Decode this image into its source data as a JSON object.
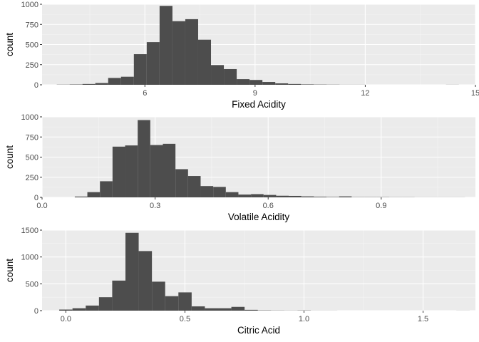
{
  "chart_data": [
    {
      "type": "histogram",
      "xlabel": "Fixed Acidity",
      "ylabel": "count",
      "xlim": [
        3.2,
        15.0
      ],
      "ylim": [
        0,
        1000
      ],
      "xticks": [
        6,
        9,
        12,
        15
      ],
      "yticks": [
        0,
        250,
        500,
        750,
        1000
      ],
      "bin_width": 0.35,
      "bins": [
        {
          "x0": 3.6,
          "count": 2
        },
        {
          "x0": 3.95,
          "count": 4
        },
        {
          "x0": 4.3,
          "count": 10
        },
        {
          "x0": 4.65,
          "count": 22
        },
        {
          "x0": 5.0,
          "count": 85
        },
        {
          "x0": 5.35,
          "count": 100
        },
        {
          "x0": 5.7,
          "count": 380
        },
        {
          "x0": 6.05,
          "count": 530
        },
        {
          "x0": 6.4,
          "count": 980
        },
        {
          "x0": 6.75,
          "count": 790
        },
        {
          "x0": 7.1,
          "count": 815
        },
        {
          "x0": 7.45,
          "count": 560
        },
        {
          "x0": 7.8,
          "count": 245
        },
        {
          "x0": 8.15,
          "count": 195
        },
        {
          "x0": 8.5,
          "count": 70
        },
        {
          "x0": 8.85,
          "count": 60
        },
        {
          "x0": 9.2,
          "count": 35
        },
        {
          "x0": 9.55,
          "count": 18
        },
        {
          "x0": 9.9,
          "count": 10
        },
        {
          "x0": 10.25,
          "count": 5
        },
        {
          "x0": 10.6,
          "count": 3
        },
        {
          "x0": 10.95,
          "count": 2
        },
        {
          "x0": 11.3,
          "count": 1
        },
        {
          "x0": 11.65,
          "count": 1
        },
        {
          "x0": 14.2,
          "count": 1
        }
      ]
    },
    {
      "type": "histogram",
      "xlabel": "Volatile Acidity",
      "ylabel": "count",
      "xlim": [
        0.0,
        1.15
      ],
      "ylim": [
        0,
        1000
      ],
      "xticks": [
        0.0,
        0.3,
        0.6,
        0.9
      ],
      "xtick_labels": [
        "0.0",
        "0.3",
        "0.6",
        "0.9"
      ],
      "yticks": [
        0,
        250,
        500,
        750,
        1000
      ],
      "bin_width": 0.0334,
      "bins": [
        {
          "x0": 0.0868,
          "count": 10
        },
        {
          "x0": 0.1202,
          "count": 65
        },
        {
          "x0": 0.1536,
          "count": 200
        },
        {
          "x0": 0.187,
          "count": 630
        },
        {
          "x0": 0.2204,
          "count": 645
        },
        {
          "x0": 0.2538,
          "count": 960
        },
        {
          "x0": 0.2872,
          "count": 650
        },
        {
          "x0": 0.3206,
          "count": 665
        },
        {
          "x0": 0.354,
          "count": 350
        },
        {
          "x0": 0.3874,
          "count": 265
        },
        {
          "x0": 0.4208,
          "count": 140
        },
        {
          "x0": 0.4542,
          "count": 130
        },
        {
          "x0": 0.4876,
          "count": 65
        },
        {
          "x0": 0.521,
          "count": 35
        },
        {
          "x0": 0.5544,
          "count": 40
        },
        {
          "x0": 0.5878,
          "count": 30
        },
        {
          "x0": 0.6212,
          "count": 20
        },
        {
          "x0": 0.6546,
          "count": 18
        },
        {
          "x0": 0.688,
          "count": 12
        },
        {
          "x0": 0.7214,
          "count": 8
        },
        {
          "x0": 0.7548,
          "count": 5
        },
        {
          "x0": 0.7882,
          "count": 12
        },
        {
          "x0": 0.8216,
          "count": 3
        },
        {
          "x0": 0.855,
          "count": 3
        },
        {
          "x0": 0.8884,
          "count": 3
        },
        {
          "x0": 0.9218,
          "count": 2
        },
        {
          "x0": 0.9552,
          "count": 2
        },
        {
          "x0": 0.9886,
          "count": 1
        },
        {
          "x0": 1.022,
          "count": 1
        },
        {
          "x0": 1.0554,
          "count": 1
        },
        {
          "x0": 1.0888,
          "count": 1
        }
      ]
    },
    {
      "type": "histogram",
      "xlabel": "Citric Acid",
      "ylabel": "count",
      "xlim": [
        -0.1,
        1.72
      ],
      "ylim": [
        0,
        1500
      ],
      "xticks": [
        0.0,
        0.5,
        1.0,
        1.5
      ],
      "xtick_labels": [
        "0.0",
        "0.5",
        "1.0",
        "1.5"
      ],
      "yticks": [
        0,
        500,
        1000,
        1500
      ],
      "bin_width": 0.0556,
      "bins": [
        {
          "x0": -0.0278,
          "count": 20
        },
        {
          "x0": 0.0278,
          "count": 45
        },
        {
          "x0": 0.0834,
          "count": 95
        },
        {
          "x0": 0.139,
          "count": 250
        },
        {
          "x0": 0.1946,
          "count": 560
        },
        {
          "x0": 0.2502,
          "count": 1450
        },
        {
          "x0": 0.3058,
          "count": 1110
        },
        {
          "x0": 0.3614,
          "count": 540
        },
        {
          "x0": 0.417,
          "count": 270
        },
        {
          "x0": 0.4726,
          "count": 340
        },
        {
          "x0": 0.5282,
          "count": 80
        },
        {
          "x0": 0.5838,
          "count": 45
        },
        {
          "x0": 0.6394,
          "count": 45
        },
        {
          "x0": 0.695,
          "count": 70
        },
        {
          "x0": 0.7506,
          "count": 15
        },
        {
          "x0": 0.8062,
          "count": 5
        },
        {
          "x0": 0.8618,
          "count": 3
        },
        {
          "x0": 0.9174,
          "count": 2
        },
        {
          "x0": 0.973,
          "count": 4
        },
        {
          "x0": 1.0286,
          "count": 1
        },
        {
          "x0": 1.0842,
          "count": 1
        },
        {
          "x0": 1.6402,
          "count": 1
        }
      ]
    }
  ]
}
